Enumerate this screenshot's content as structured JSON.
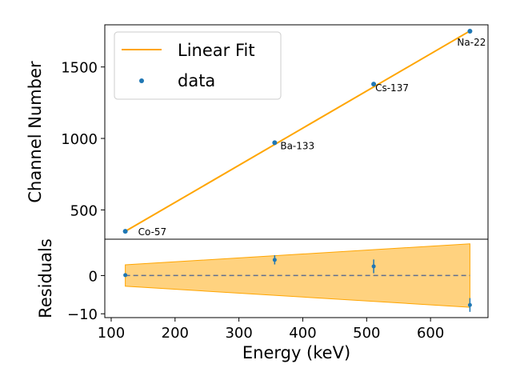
{
  "chart_data": [
    {
      "type": "scatter",
      "panel": "main",
      "xlabel": "Energy (keV)",
      "ylabel": "Channel Number",
      "xlim": [
        90,
        690
      ],
      "ylim": [
        295,
        1795
      ],
      "y_ticks": [
        500,
        1000,
        1500
      ],
      "x_ticks": [
        100,
        200,
        300,
        400,
        500,
        600
      ],
      "legend": {
        "placement": "top-left",
        "entries": [
          "Linear Fit",
          "data"
        ]
      },
      "series": [
        {
          "name": "data",
          "color": "#1f77b4",
          "points": [
            {
              "x": 122.1,
              "y": 350,
              "label": "Co-57"
            },
            {
              "x": 356.0,
              "y": 970,
              "label": "Ba-133"
            },
            {
              "x": 511.0,
              "y": 1380,
              "label": "Cs-137"
            },
            {
              "x": 661.7,
              "y": 1750,
              "label": "Na-22"
            }
          ]
        },
        {
          "name": "Linear Fit",
          "color": "#ffa500",
          "line": {
            "x": [
              122.1,
              661.7
            ],
            "y": [
              350,
              1752
            ]
          }
        }
      ]
    },
    {
      "type": "scatter",
      "panel": "residuals",
      "ylabel": "Residuals",
      "xlim": [
        90,
        690
      ],
      "ylim": [
        -11,
        9.5
      ],
      "y_ticks": [
        -10,
        0
      ],
      "x_ticks": [
        100,
        200,
        300,
        400,
        500,
        600
      ],
      "zero_line": {
        "color": "#5f6f91",
        "style": "dashed"
      },
      "band": {
        "x": [
          122.1,
          661.7
        ],
        "upper": [
          2.8,
          8.3
        ],
        "lower": [
          -2.8,
          -8.3
        ],
        "color": "#ffa500"
      },
      "points": [
        {
          "x": 122.1,
          "y": 0.1,
          "err": 0.4
        },
        {
          "x": 356.0,
          "y": 4.1,
          "err": 1.2
        },
        {
          "x": 511.0,
          "y": 2.4,
          "err": 1.8
        },
        {
          "x": 661.7,
          "y": -7.7,
          "err": 1.8
        }
      ],
      "color": "#1f77b4"
    }
  ]
}
